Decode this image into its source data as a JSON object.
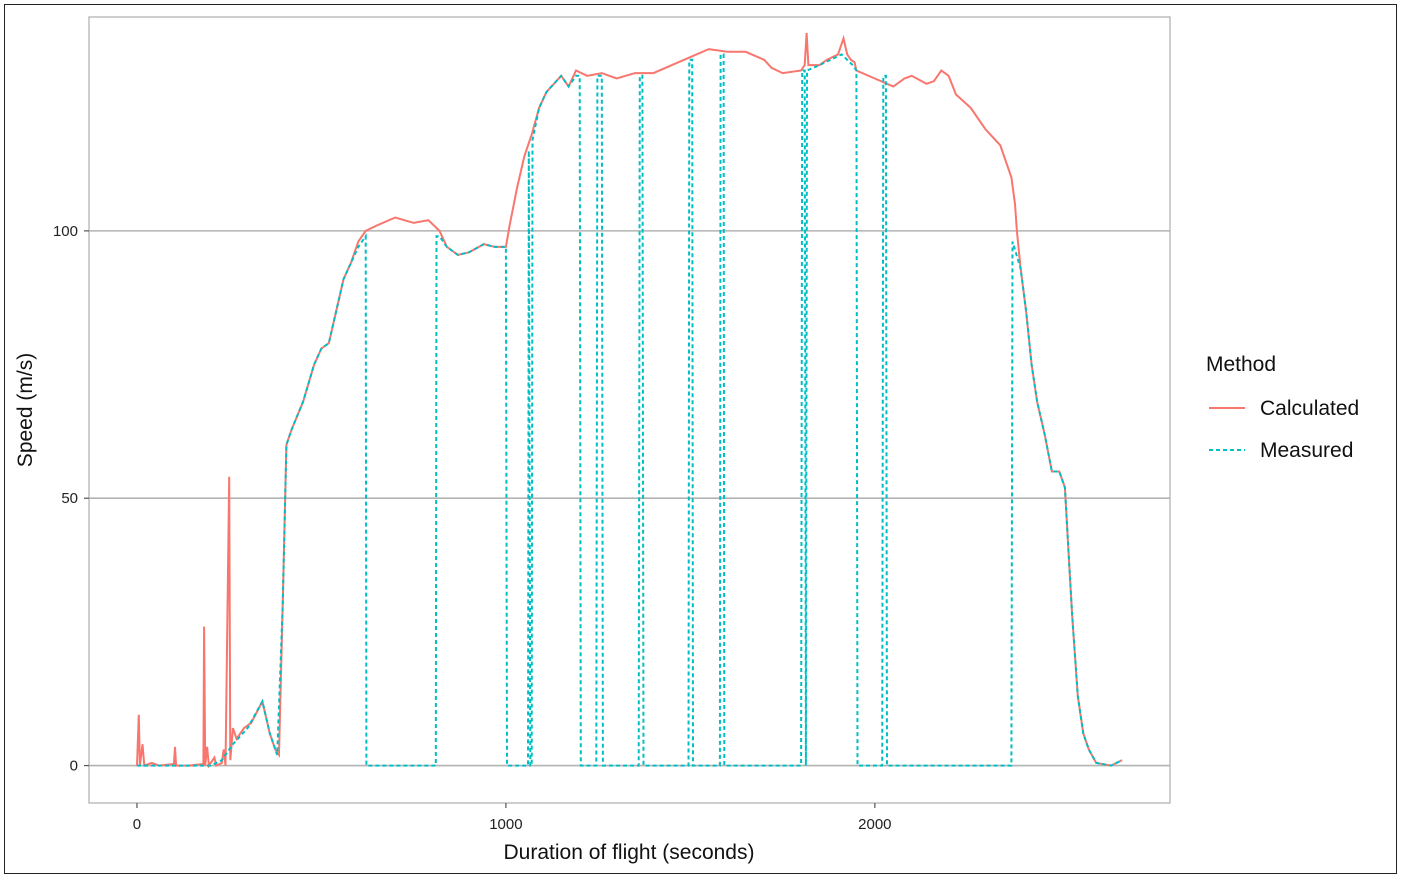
{
  "chart_data": {
    "type": "line",
    "xlabel": "Duration of flight (seconds)",
    "ylabel": "Speed (m/s)",
    "xlim": [
      -130,
      2800
    ],
    "ylim": [
      -7,
      140
    ],
    "x_ticks": [
      0,
      1000,
      2000
    ],
    "y_ticks": [
      0,
      50,
      100
    ],
    "x_tick_labels": [
      "0",
      "1000",
      "2000"
    ],
    "y_tick_labels": [
      "0",
      "50",
      "100"
    ],
    "grid": "horizontal major",
    "legend": {
      "title": "Method",
      "placement": "right",
      "entries": [
        "Calculated",
        "Measured"
      ]
    },
    "series": [
      {
        "name": "Calculated",
        "color": "#F8766D",
        "dash": "solid",
        "points": [
          [
            0,
            0
          ],
          [
            5,
            9.5
          ],
          [
            8,
            0
          ],
          [
            15,
            4
          ],
          [
            20,
            0
          ],
          [
            40,
            0.5
          ],
          [
            60,
            0
          ],
          [
            100,
            0.3
          ],
          [
            103,
            3.5
          ],
          [
            106,
            0
          ],
          [
            140,
            0
          ],
          [
            180,
            0.3
          ],
          [
            182,
            26
          ],
          [
            185,
            0
          ],
          [
            190,
            3.5
          ],
          [
            195,
            0
          ],
          [
            210,
            1.5
          ],
          [
            215,
            0
          ],
          [
            230,
            0.5
          ],
          [
            235,
            3
          ],
          [
            240,
            0
          ],
          [
            250,
            54
          ],
          [
            253,
            1
          ],
          [
            260,
            7
          ],
          [
            270,
            5
          ],
          [
            290,
            7
          ],
          [
            310,
            8
          ],
          [
            340,
            12
          ],
          [
            360,
            6
          ],
          [
            375,
            3
          ],
          [
            385,
            2
          ],
          [
            395,
            30
          ],
          [
            405,
            60
          ],
          [
            420,
            63
          ],
          [
            450,
            68
          ],
          [
            480,
            75
          ],
          [
            500,
            78
          ],
          [
            520,
            79
          ],
          [
            540,
            85
          ],
          [
            560,
            91
          ],
          [
            580,
            94
          ],
          [
            600,
            98
          ],
          [
            620,
            100
          ],
          [
            650,
            101
          ],
          [
            700,
            102.5
          ],
          [
            750,
            101.5
          ],
          [
            790,
            102
          ],
          [
            820,
            100
          ],
          [
            840,
            97
          ],
          [
            870,
            95.5
          ],
          [
            900,
            96
          ],
          [
            940,
            97.5
          ],
          [
            970,
            97
          ],
          [
            1000,
            97
          ],
          [
            1010,
            101
          ],
          [
            1030,
            108
          ],
          [
            1050,
            114
          ],
          [
            1070,
            118
          ],
          [
            1090,
            123
          ],
          [
            1110,
            126
          ],
          [
            1130,
            127.5
          ],
          [
            1150,
            129
          ],
          [
            1170,
            127
          ],
          [
            1190,
            130
          ],
          [
            1220,
            129
          ],
          [
            1260,
            129.5
          ],
          [
            1300,
            128.5
          ],
          [
            1350,
            129.5
          ],
          [
            1400,
            129.5
          ],
          [
            1450,
            131
          ],
          [
            1500,
            132.5
          ],
          [
            1550,
            134
          ],
          [
            1600,
            133.5
          ],
          [
            1650,
            133.5
          ],
          [
            1700,
            132
          ],
          [
            1720,
            130.5
          ],
          [
            1750,
            129.5
          ],
          [
            1800,
            130
          ],
          [
            1810,
            131
          ],
          [
            1815,
            137
          ],
          [
            1820,
            131
          ],
          [
            1850,
            131
          ],
          [
            1870,
            132
          ],
          [
            1900,
            133
          ],
          [
            1915,
            136
          ],
          [
            1925,
            133
          ],
          [
            1935,
            132
          ],
          [
            1945,
            131.5
          ],
          [
            1950,
            130
          ],
          [
            2000,
            128.5
          ],
          [
            2050,
            127
          ],
          [
            2080,
            128.5
          ],
          [
            2100,
            129
          ],
          [
            2140,
            127.5
          ],
          [
            2160,
            128
          ],
          [
            2180,
            130
          ],
          [
            2200,
            129
          ],
          [
            2220,
            125.5
          ],
          [
            2260,
            123
          ],
          [
            2300,
            119
          ],
          [
            2340,
            116
          ],
          [
            2370,
            110
          ],
          [
            2380,
            105
          ],
          [
            2385,
            100
          ],
          [
            2395,
            93
          ],
          [
            2410,
            85
          ],
          [
            2425,
            75
          ],
          [
            2440,
            68
          ],
          [
            2460,
            62
          ],
          [
            2480,
            55
          ],
          [
            2500,
            55
          ],
          [
            2515,
            52
          ],
          [
            2525,
            40
          ],
          [
            2535,
            28
          ],
          [
            2550,
            13
          ],
          [
            2565,
            6
          ],
          [
            2580,
            3
          ],
          [
            2600,
            0.5
          ],
          [
            2640,
            0
          ],
          [
            2670,
            1
          ]
        ]
      },
      {
        "name": "Measured",
        "color": "#00BFC4",
        "dash": "dotted",
        "points": [
          [
            0,
            0
          ],
          [
            40,
            0
          ],
          [
            100,
            0
          ],
          [
            150,
            0
          ],
          [
            200,
            0
          ],
          [
            230,
            1
          ],
          [
            260,
            4
          ],
          [
            300,
            7
          ],
          [
            340,
            12
          ],
          [
            360,
            6
          ],
          [
            380,
            2
          ],
          [
            395,
            30
          ],
          [
            405,
            60
          ],
          [
            420,
            63
          ],
          [
            450,
            68
          ],
          [
            480,
            75
          ],
          [
            500,
            78
          ],
          [
            520,
            79
          ],
          [
            540,
            85
          ],
          [
            560,
            91
          ],
          [
            580,
            94
          ],
          [
            600,
            97
          ],
          [
            620,
            99
          ],
          [
            622,
            0
          ],
          [
            810,
            0
          ],
          [
            812,
            99
          ],
          [
            820,
            99
          ],
          [
            840,
            97
          ],
          [
            870,
            95.5
          ],
          [
            900,
            96
          ],
          [
            940,
            97.5
          ],
          [
            970,
            97
          ],
          [
            1000,
            97
          ],
          [
            1003,
            0
          ],
          [
            1060,
            0
          ],
          [
            1062,
            115
          ],
          [
            1066,
            0
          ],
          [
            1070,
            0
          ],
          [
            1072,
            117
          ],
          [
            1090,
            123
          ],
          [
            1110,
            126
          ],
          [
            1130,
            127.5
          ],
          [
            1150,
            129
          ],
          [
            1170,
            127
          ],
          [
            1190,
            129
          ],
          [
            1200,
            129
          ],
          [
            1203,
            0
          ],
          [
            1245,
            0
          ],
          [
            1248,
            129
          ],
          [
            1260,
            129
          ],
          [
            1263,
            0
          ],
          [
            1360,
            0
          ],
          [
            1363,
            129
          ],
          [
            1370,
            129
          ],
          [
            1373,
            0
          ],
          [
            1495,
            0
          ],
          [
            1497,
            132
          ],
          [
            1505,
            132
          ],
          [
            1507,
            0
          ],
          [
            1580,
            0
          ],
          [
            1582,
            133
          ],
          [
            1590,
            133
          ],
          [
            1592,
            0
          ],
          [
            1800,
            0
          ],
          [
            1803,
            130
          ],
          [
            1810,
            130
          ],
          [
            1813,
            0
          ],
          [
            1816,
            130
          ],
          [
            1850,
            131
          ],
          [
            1880,
            132
          ],
          [
            1910,
            133
          ],
          [
            1940,
            131
          ],
          [
            1950,
            130
          ],
          [
            1953,
            0
          ],
          [
            2020,
            0
          ],
          [
            2023,
            129
          ],
          [
            2030,
            129
          ],
          [
            2033,
            0
          ],
          [
            2370,
            0
          ],
          [
            2373,
            98
          ],
          [
            2395,
            93
          ],
          [
            2410,
            85
          ],
          [
            2425,
            75
          ],
          [
            2440,
            68
          ],
          [
            2460,
            62
          ],
          [
            2480,
            55
          ],
          [
            2500,
            55
          ],
          [
            2515,
            52
          ],
          [
            2525,
            40
          ],
          [
            2535,
            28
          ],
          [
            2550,
            13
          ],
          [
            2565,
            6
          ],
          [
            2580,
            3
          ],
          [
            2600,
            0.5
          ],
          [
            2640,
            0
          ],
          [
            2670,
            1
          ]
        ]
      }
    ]
  }
}
